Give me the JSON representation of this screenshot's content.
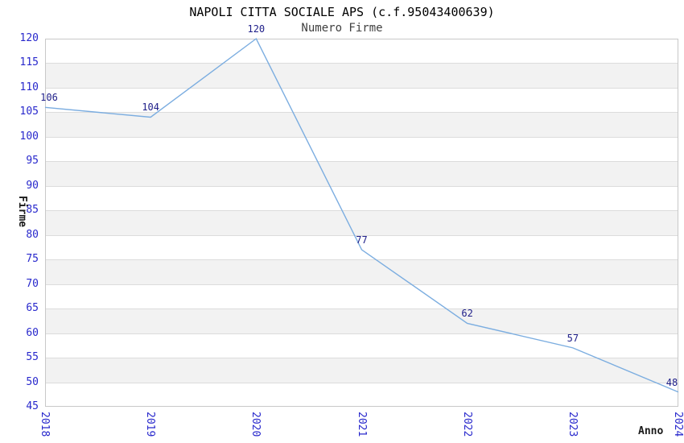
{
  "chart_data": {
    "type": "line",
    "title": "NAPOLI CITTA SOCIALE APS (c.f.95043400639)",
    "subtitle": "Numero Firme",
    "xlabel": "Anno",
    "ylabel": "Firme",
    "x": [
      "2018",
      "2019",
      "2020",
      "2021",
      "2022",
      "2023",
      "2024"
    ],
    "series": [
      {
        "name": "Numero Firme",
        "values": [
          106,
          104,
          120,
          77,
          62,
          57,
          48
        ]
      }
    ],
    "ylim": [
      45,
      120
    ],
    "ytick_step": 5,
    "yticks": [
      45,
      50,
      55,
      60,
      65,
      70,
      75,
      80,
      85,
      90,
      95,
      100,
      105,
      110,
      115,
      120
    ],
    "grid": "horizontal",
    "bands": "alternating-every-5-units",
    "legend": "none",
    "point_labels_shown": true,
    "colors": {
      "line": "#7bade0",
      "tick_label": "#2828cc",
      "point_label": "#20208a",
      "title": "#000000",
      "subtitle": "#404040",
      "axis_title": "#1a1a1a",
      "band_gray": "#f2f2f2",
      "gridline": "#dcdcdc",
      "frame": "#c8c8c8",
      "background": "#ffffff"
    }
  }
}
